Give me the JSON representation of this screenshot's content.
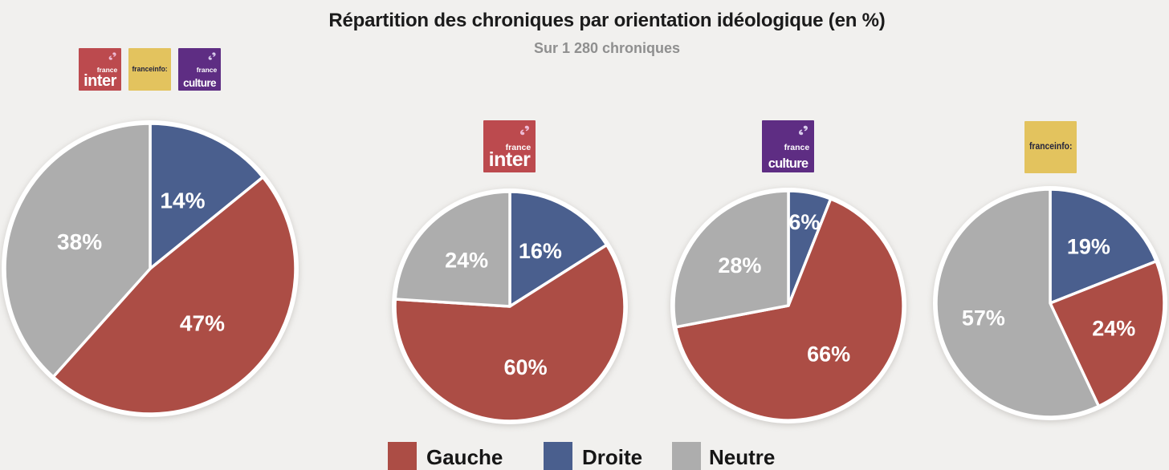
{
  "title": "Répartition des chroniques par orientation idéologique (en %)",
  "subtitle": "Sur 1 280 chroniques",
  "colors": {
    "Gauche": "#ac4d45",
    "Droite": "#4a5f8e",
    "Neutre": "#adadad",
    "background": "#f1f0ee"
  },
  "legend": {
    "position": "bottom",
    "items": [
      "Gauche",
      "Droite",
      "Neutre"
    ]
  },
  "logos": {
    "france_inter": {
      "name": "France Inter",
      "top": "france",
      "main": "inter",
      "bg": "#bc4a4e",
      "text": "#ffffff",
      "mark": "#eebcd6"
    },
    "franceinfo": {
      "name": "franceinfo",
      "main": "franceinfo:",
      "bg": "#e3c35e",
      "text": "#22233c"
    },
    "france_culture": {
      "name": "France Culture",
      "top": "france",
      "main": "culture",
      "bg": "#5e2d83",
      "text": "#ffffff",
      "mark": "#d9cdec"
    }
  },
  "chart_data": [
    {
      "type": "pie",
      "station": "France Inter + franceinfo + France Culture",
      "categories": [
        "Droite",
        "Gauche",
        "Neutre"
      ],
      "values": [
        14,
        47,
        38
      ],
      "labels": [
        "14%",
        "47%",
        "38%"
      ],
      "start_angle": "12 o'clock, clockwise"
    },
    {
      "type": "pie",
      "station": "France Inter",
      "categories": [
        "Droite",
        "Gauche",
        "Neutre"
      ],
      "values": [
        16,
        60,
        24
      ],
      "labels": [
        "16%",
        "60%",
        "24%"
      ],
      "start_angle": "12 o'clock, clockwise"
    },
    {
      "type": "pie",
      "station": "France Culture",
      "categories": [
        "Droite",
        "Gauche",
        "Neutre"
      ],
      "values": [
        6,
        66,
        28
      ],
      "labels": [
        "6%",
        "66%",
        "28%"
      ],
      "start_angle": "12 o'clock, clockwise"
    },
    {
      "type": "pie",
      "station": "franceinfo",
      "categories": [
        "Droite",
        "Gauche",
        "Neutre"
      ],
      "values": [
        19,
        24,
        57
      ],
      "labels": [
        "19%",
        "24%",
        "57%"
      ],
      "start_angle": "12 o'clock, clockwise"
    }
  ]
}
